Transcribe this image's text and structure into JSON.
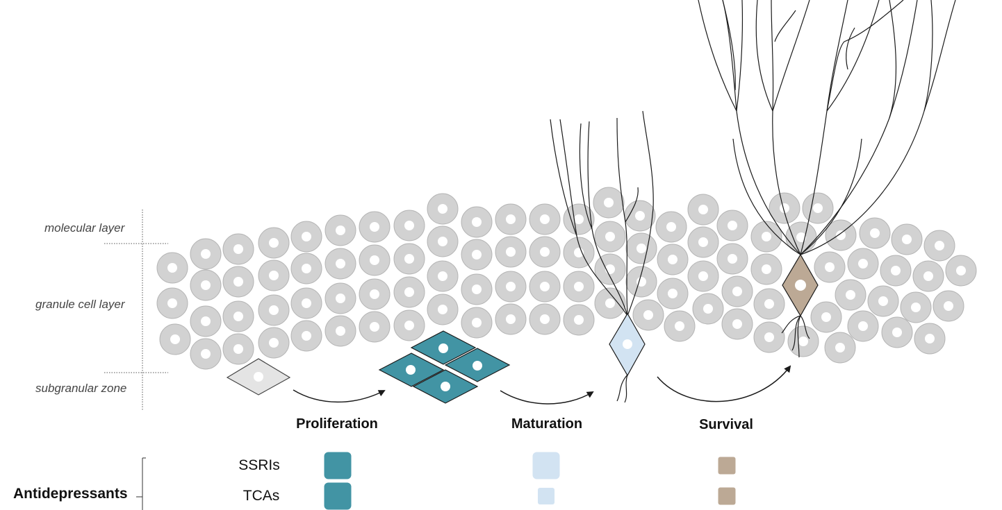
{
  "layers": {
    "molecular": "molecular layer",
    "granule": "granule cell layer",
    "subgranular": "subgranular zone"
  },
  "stages": {
    "proliferation": "Proliferation",
    "maturation": "Maturation",
    "survival": "Survival"
  },
  "table": {
    "group_label": "Antidepressants",
    "rows": [
      {
        "drug": "SSRIs",
        "proliferation": "large",
        "maturation": "large",
        "survival": "small"
      },
      {
        "drug": "TCAs",
        "proliferation": "large",
        "maturation": "small",
        "survival": "small"
      }
    ]
  },
  "colors": {
    "granule_cell": "#d2d2d2",
    "granule_cell_border": "#b5b5b5",
    "nucleus": "#ffffff",
    "stem_cell": "#e4e4e4",
    "proliferation": "#4294a4",
    "maturation": "#d2e3f2",
    "survival": "#bca995",
    "line": "#1a1a1a"
  },
  "icons": {
    "stem_cell": "diamond-cell-gray",
    "proliferating_cells": "diamond-cluster-teal",
    "immature_neuron": "diamond-neuron-lightblue",
    "mature_neuron": "diamond-neuron-tan"
  }
}
